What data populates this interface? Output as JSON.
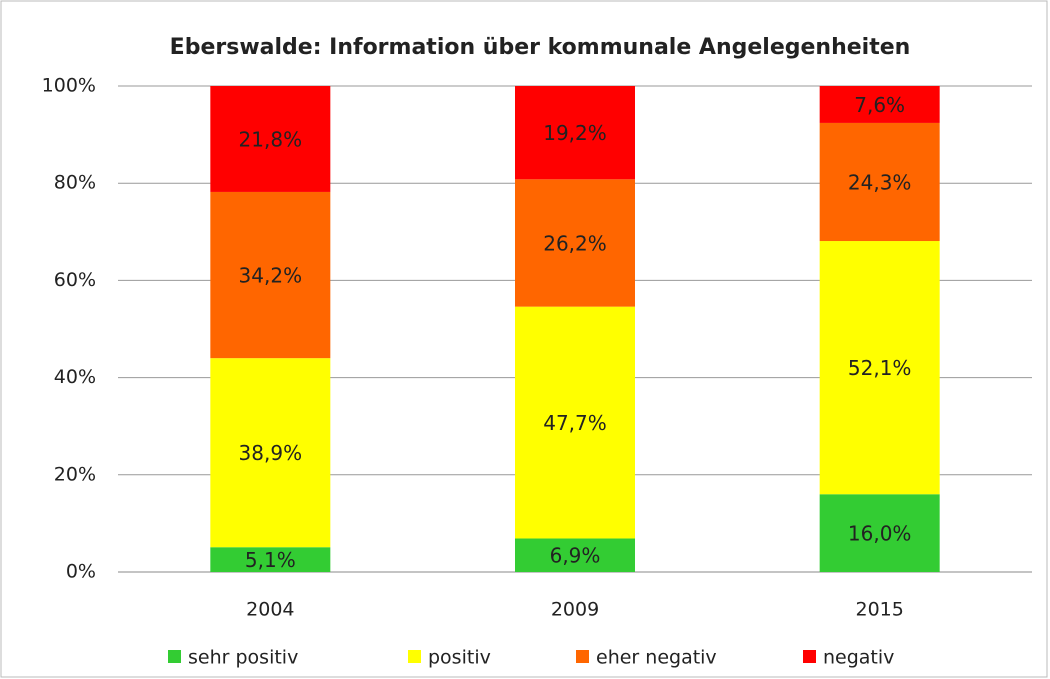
{
  "chart_data": {
    "type": "stacked_bar",
    "title": "Eberswalde: Information über kommunale Angelegenheiten",
    "categories": [
      "2004",
      "2009",
      "2015"
    ],
    "series": [
      {
        "name": "sehr positiv",
        "color": "#33cc33",
        "values": [
          5.1,
          6.9,
          16.0
        ],
        "value_labels": [
          "5,1%",
          "6,9%",
          "16,0%"
        ]
      },
      {
        "name": "positiv",
        "color": "#ffff00",
        "values": [
          38.9,
          47.7,
          52.1
        ],
        "value_labels": [
          "38,9%",
          "47,7%",
          "52,1%"
        ]
      },
      {
        "name": "eher negativ",
        "color": "#ff6600",
        "values": [
          34.2,
          26.2,
          24.3
        ],
        "value_labels": [
          "34,2%",
          "26,2%",
          "24,3%"
        ]
      },
      {
        "name": "negativ",
        "color": "#ff0000",
        "values": [
          21.8,
          19.2,
          7.6
        ],
        "value_labels": [
          "21,8%",
          "19,2%",
          "7,6%"
        ]
      }
    ],
    "ylim": [
      0,
      100
    ],
    "yticks": [
      {
        "value": 0,
        "label": "0%"
      },
      {
        "value": 20,
        "label": "20%"
      },
      {
        "value": 40,
        "label": "40%"
      },
      {
        "value": 60,
        "label": "60%"
      },
      {
        "value": 80,
        "label": "80%"
      },
      {
        "value": 100,
        "label": "100%"
      }
    ],
    "grid": true,
    "legend": "bottom"
  }
}
